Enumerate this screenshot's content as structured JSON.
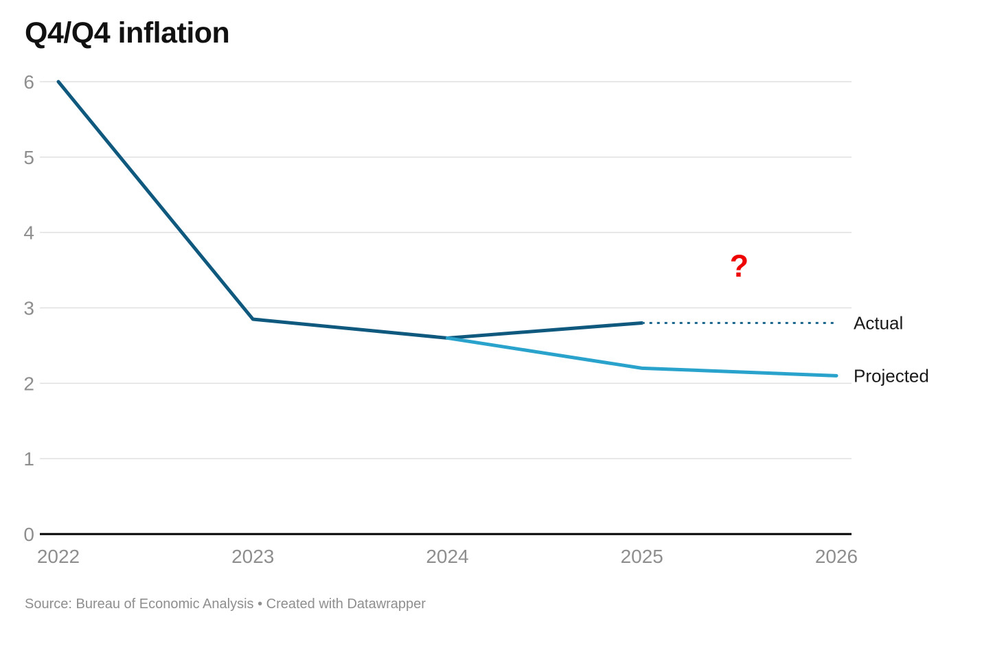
{
  "chart": {
    "title": "Q4/Q4 inflation",
    "source_note": "Source: Bureau of Economic Analysis • Created with Datawrapper"
  },
  "chart_data": {
    "type": "line",
    "title": "Q4/Q4 inflation",
    "xlabel": "",
    "ylabel": "",
    "xlim": [
      2022,
      2026
    ],
    "ylim": [
      0,
      6
    ],
    "xticks": [
      "2022",
      "2023",
      "2024",
      "2025",
      "2026"
    ],
    "xtick_values": [
      2022,
      2023,
      2024,
      2025,
      2026
    ],
    "yticks": [
      "0",
      "1",
      "2",
      "3",
      "4",
      "5",
      "6"
    ],
    "ytick_values": [
      0,
      1,
      2,
      3,
      4,
      5,
      6
    ],
    "grid": "horizontal",
    "legend_position": "right-edge-labels",
    "series": [
      {
        "name": "Actual",
        "style": "solid",
        "color": "#0f587e",
        "stroke_width": 5,
        "points": [
          {
            "x": 2022,
            "y": 6.0
          },
          {
            "x": 2023,
            "y": 2.85
          },
          {
            "x": 2024,
            "y": 2.6
          },
          {
            "x": 2025,
            "y": 2.8
          }
        ]
      },
      {
        "name": "Actual (dashed continuation)",
        "style": "dashed",
        "color": "#1e688f",
        "stroke_width": 3,
        "points": [
          {
            "x": 2025,
            "y": 2.8
          },
          {
            "x": 2026,
            "y": 2.8
          }
        ]
      },
      {
        "name": "Projected",
        "style": "solid",
        "color": "#29a2cc",
        "stroke_width": 5,
        "points": [
          {
            "x": 2024,
            "y": 2.6
          },
          {
            "x": 2025,
            "y": 2.2
          },
          {
            "x": 2026,
            "y": 2.1
          }
        ]
      }
    ],
    "edge_labels": [
      {
        "text": "Actual",
        "y": 2.8,
        "color": "#1a1a1a"
      },
      {
        "text": "Projected",
        "y": 2.1,
        "color": "#1a1a1a"
      }
    ],
    "annotations": [
      {
        "text": "?",
        "x": 2025.5,
        "y": 3.55,
        "color": "#ee0000",
        "font_size": 45,
        "bold": true
      }
    ],
    "colors": {
      "grid": "#e0e0e0",
      "axis": "#000000",
      "tick_label": "#8e8e8e",
      "actual_line": "#0f587e",
      "projected_line": "#29a2cc",
      "annotation": "#ee0000"
    }
  }
}
